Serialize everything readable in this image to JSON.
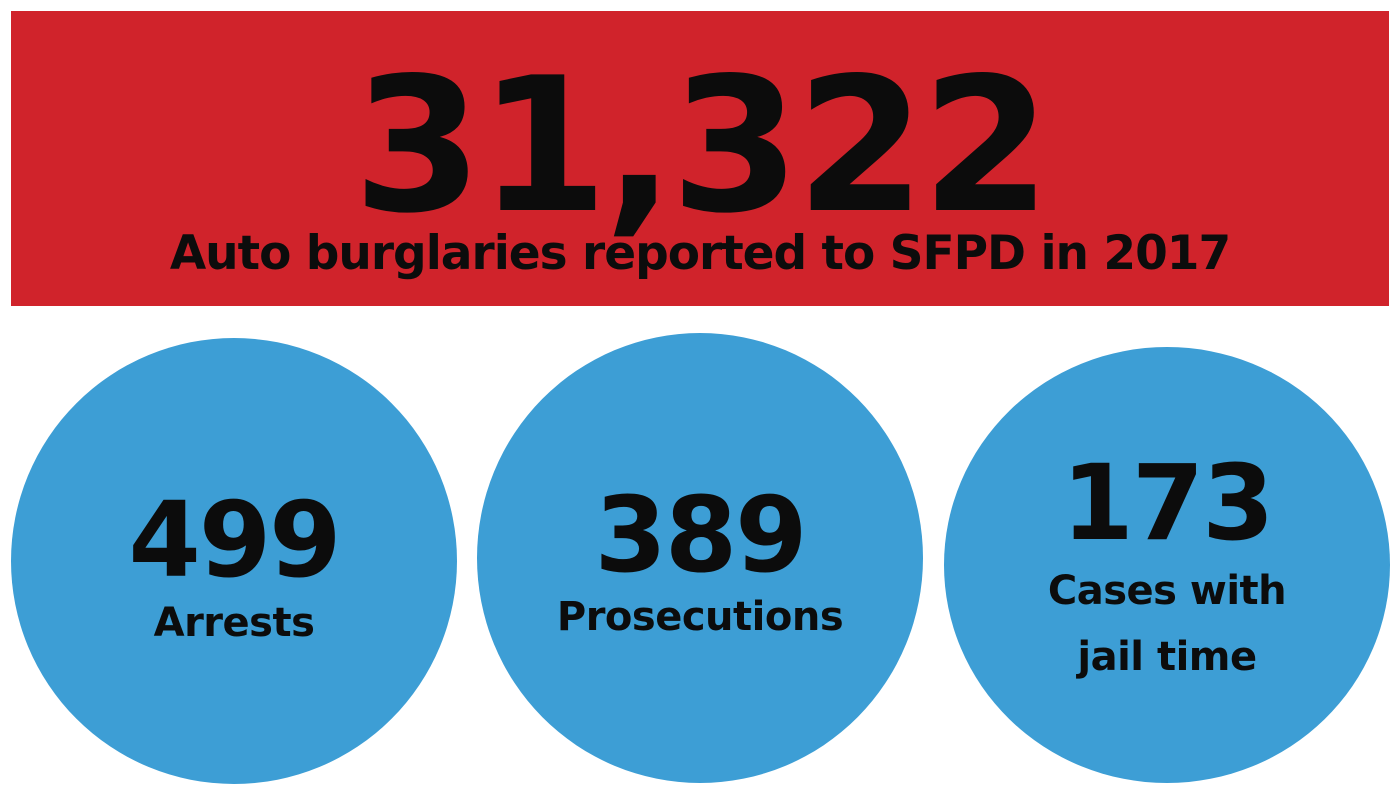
{
  "headline": {
    "number": "31,322",
    "caption": "Auto burglaries reported to SFPD in 2017"
  },
  "stats": {
    "arrests": {
      "number": "499",
      "label": "Arrests"
    },
    "prosecutions": {
      "number": "389",
      "label": "Prosecutions"
    },
    "jail": {
      "number": "173",
      "label_line1": "Cases with",
      "label_line2": "jail time"
    }
  },
  "colors": {
    "banner": "#d0232b",
    "circle": "#3d9ed5",
    "text": "#0c0c0c",
    "background": "#ffffff"
  }
}
